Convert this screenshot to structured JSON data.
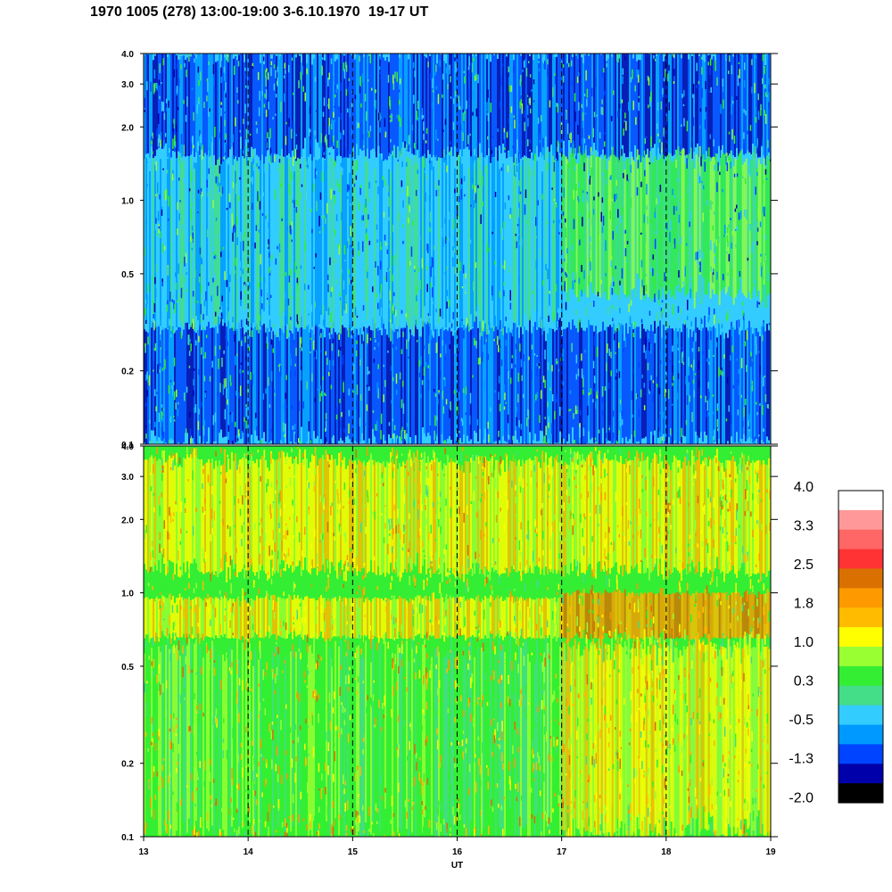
{
  "chart_data": {
    "type": "heatmap",
    "title": "1970 1005 (278) 13:00-19:00 3-6.10.1970  19-17 UT",
    "xlabel": "UT",
    "x_ticks": [
      "13",
      "14",
      "15",
      "16",
      "17",
      "18",
      "19"
    ],
    "x_range": [
      13,
      19
    ],
    "y_scale": "log",
    "y_range": [
      0.1,
      4.0
    ],
    "y_ticks": [
      {
        "value": 0.1,
        "label": "0.1"
      },
      {
        "value": 0.2,
        "label": "0.2"
      },
      {
        "value": 0.5,
        "label": "0.5"
      },
      {
        "value": 1.0,
        "label": "1.0"
      },
      {
        "value": 2.0,
        "label": "2.0"
      },
      {
        "value": 3.0,
        "label": "3.0"
      },
      {
        "value": 4.0,
        "label": "4.0"
      }
    ],
    "hour_markers": [
      14,
      15,
      16,
      17,
      18
    ],
    "colorbar": {
      "labels": [
        "4.0",
        "3.3",
        "2.5",
        "1.8",
        "1.0",
        "0.3",
        "-0.5",
        "-1.3",
        "-2.0"
      ],
      "colors": [
        "#ffffff",
        "#ff9999",
        "#ff6666",
        "#ff3333",
        "#d97000",
        "#ff9900",
        "#ffbb00",
        "#ffff00",
        "#99ff33",
        "#33ee33",
        "#44dd88",
        "#33ccff",
        "#0099ff",
        "#0044ff",
        "#0000aa",
        "#000000"
      ]
    },
    "panels": [
      {
        "name": "upper",
        "dominant_levels": [
          "0.3",
          "-0.5",
          "1.0"
        ],
        "regions": [
          {
            "x": [
              13.0,
              19.0
            ],
            "y": [
              0.1,
              0.3
            ],
            "level": "-0.5"
          },
          {
            "x": [
              13.0,
              17.0
            ],
            "y": [
              0.3,
              1.5
            ],
            "level": "0.3"
          },
          {
            "x": [
              13.0,
              19.0
            ],
            "y": [
              1.5,
              4.0
            ],
            "level": "-0.5"
          },
          {
            "x": [
              17.0,
              19.0
            ],
            "y": [
              0.4,
              1.5
            ],
            "level": "1.0"
          }
        ]
      },
      {
        "name": "lower",
        "dominant_levels": [
          "1.0",
          "1.8",
          "2.5"
        ],
        "regions": [
          {
            "x": [
              13.0,
              19.0
            ],
            "y": [
              0.1,
              0.6
            ],
            "level": "1.0"
          },
          {
            "x": [
              13.0,
              17.0
            ],
            "y": [
              0.65,
              0.95
            ],
            "level": "1.8"
          },
          {
            "x": [
              17.0,
              19.0
            ],
            "y": [
              0.65,
              1.0
            ],
            "level": "2.5"
          },
          {
            "x": [
              13.0,
              19.0
            ],
            "y": [
              1.2,
              3.5
            ],
            "level": "1.8"
          },
          {
            "x": [
              17.0,
              19.0
            ],
            "y": [
              0.1,
              0.6
            ],
            "level": "1.8"
          }
        ]
      }
    ]
  }
}
